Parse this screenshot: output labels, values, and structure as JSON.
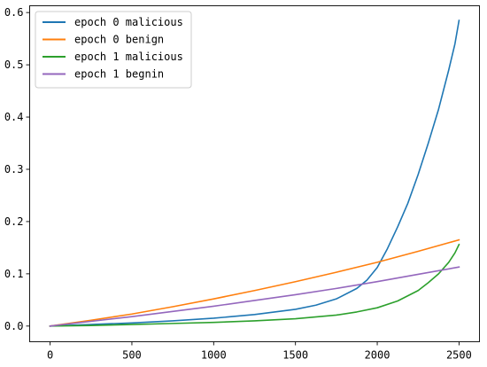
{
  "chart_data": {
    "type": "line",
    "title": "",
    "xlabel": "",
    "ylabel": "",
    "xlim": [
      -125,
      2625
    ],
    "ylim": [
      -0.03,
      0.613
    ],
    "x_ticks": [
      0,
      500,
      1000,
      1500,
      2000,
      2500
    ],
    "x_tick_labels": [
      "0",
      "500",
      "1000",
      "1500",
      "2000",
      "2500"
    ],
    "y_ticks": [
      0.0,
      0.1,
      0.2,
      0.3,
      0.4,
      0.5,
      0.6
    ],
    "y_tick_labels": [
      "0.0",
      "0.1",
      "0.2",
      "0.3",
      "0.4",
      "0.5",
      "0.6"
    ],
    "grid": false,
    "legend_position": "top-left",
    "series": [
      {
        "name": "epoch 0 malicious",
        "color": "#1f77b4",
        "x": [
          0,
          250,
          500,
          750,
          1000,
          1250,
          1500,
          1625,
          1750,
          1875,
          1937,
          2000,
          2062,
          2125,
          2187,
          2250,
          2312,
          2375,
          2437,
          2475,
          2500
        ],
        "y": [
          0.0,
          0.003,
          0.006,
          0.01,
          0.015,
          0.022,
          0.032,
          0.04,
          0.052,
          0.072,
          0.088,
          0.112,
          0.148,
          0.19,
          0.235,
          0.29,
          0.35,
          0.415,
          0.49,
          0.54,
          0.585
        ]
      },
      {
        "name": "epoch 0 benign",
        "color": "#ff7f0e",
        "x": [
          0,
          250,
          500,
          750,
          1000,
          1250,
          1500,
          1750,
          2000,
          2250,
          2500
        ],
        "y": [
          0.0,
          0.011,
          0.023,
          0.037,
          0.052,
          0.068,
          0.085,
          0.103,
          0.122,
          0.143,
          0.165
        ]
      },
      {
        "name": "epoch 1 malicious",
        "color": "#2ca02c",
        "x": [
          0,
          250,
          500,
          750,
          1000,
          1250,
          1500,
          1750,
          1875,
          2000,
          2125,
          2250,
          2312,
          2375,
          2437,
          2475,
          2500
        ],
        "y": [
          0.0,
          0.001,
          0.003,
          0.005,
          0.007,
          0.01,
          0.014,
          0.021,
          0.027,
          0.035,
          0.048,
          0.068,
          0.083,
          0.1,
          0.122,
          0.14,
          0.156
        ]
      },
      {
        "name": "epoch 1 begnin",
        "color": "#9467bd",
        "x": [
          0,
          250,
          500,
          750,
          1000,
          1250,
          1500,
          1750,
          2000,
          2250,
          2500
        ],
        "y": [
          0.0,
          0.009,
          0.018,
          0.028,
          0.038,
          0.049,
          0.06,
          0.072,
          0.085,
          0.099,
          0.113
        ]
      }
    ]
  }
}
